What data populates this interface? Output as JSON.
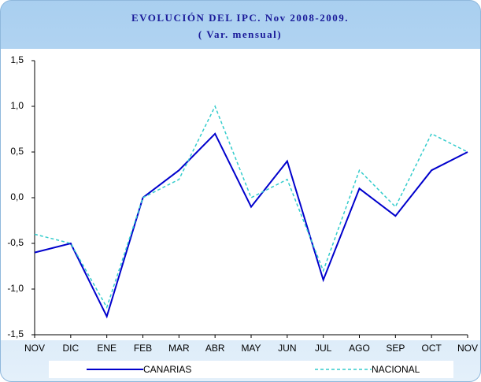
{
  "chart_data": {
    "type": "line",
    "title": "EVOLUCIÓN DEL IPC. Nov 2008-2009.",
    "subtitle": "( Var. mensual)",
    "categories": [
      "NOV",
      "DIC",
      "ENE",
      "FEB",
      "MAR",
      "ABR",
      "MAY",
      "JUN",
      "JUL",
      "AGO",
      "SEP",
      "OCT",
      "NOV"
    ],
    "series": [
      {
        "name": "CANARIAS",
        "color": "#0000cc",
        "dash": false,
        "values": [
          -0.6,
          -0.5,
          -1.3,
          0.0,
          0.3,
          0.7,
          -0.1,
          0.4,
          -0.9,
          0.1,
          -0.2,
          0.3,
          0.5
        ]
      },
      {
        "name": "NACIONAL",
        "color": "#33cccc",
        "dash": true,
        "values": [
          -0.4,
          -0.5,
          -1.2,
          0.0,
          0.2,
          1.0,
          0.0,
          0.2,
          -0.8,
          0.3,
          -0.1,
          0.7,
          0.5
        ]
      }
    ],
    "ylim": [
      -1.5,
      1.5
    ],
    "yticks": [
      {
        "value": -1.5,
        "label": "-1,5"
      },
      {
        "value": -1.0,
        "label": "-1,0"
      },
      {
        "value": -0.5,
        "label": "-0,5"
      },
      {
        "value": 0.0,
        "label": "0,0"
      },
      {
        "value": 0.5,
        "label": "0,5"
      },
      {
        "value": 1.0,
        "label": "1,0"
      },
      {
        "value": 1.5,
        "label": "1,5"
      }
    ],
    "grid": false,
    "legend": "bottom"
  }
}
